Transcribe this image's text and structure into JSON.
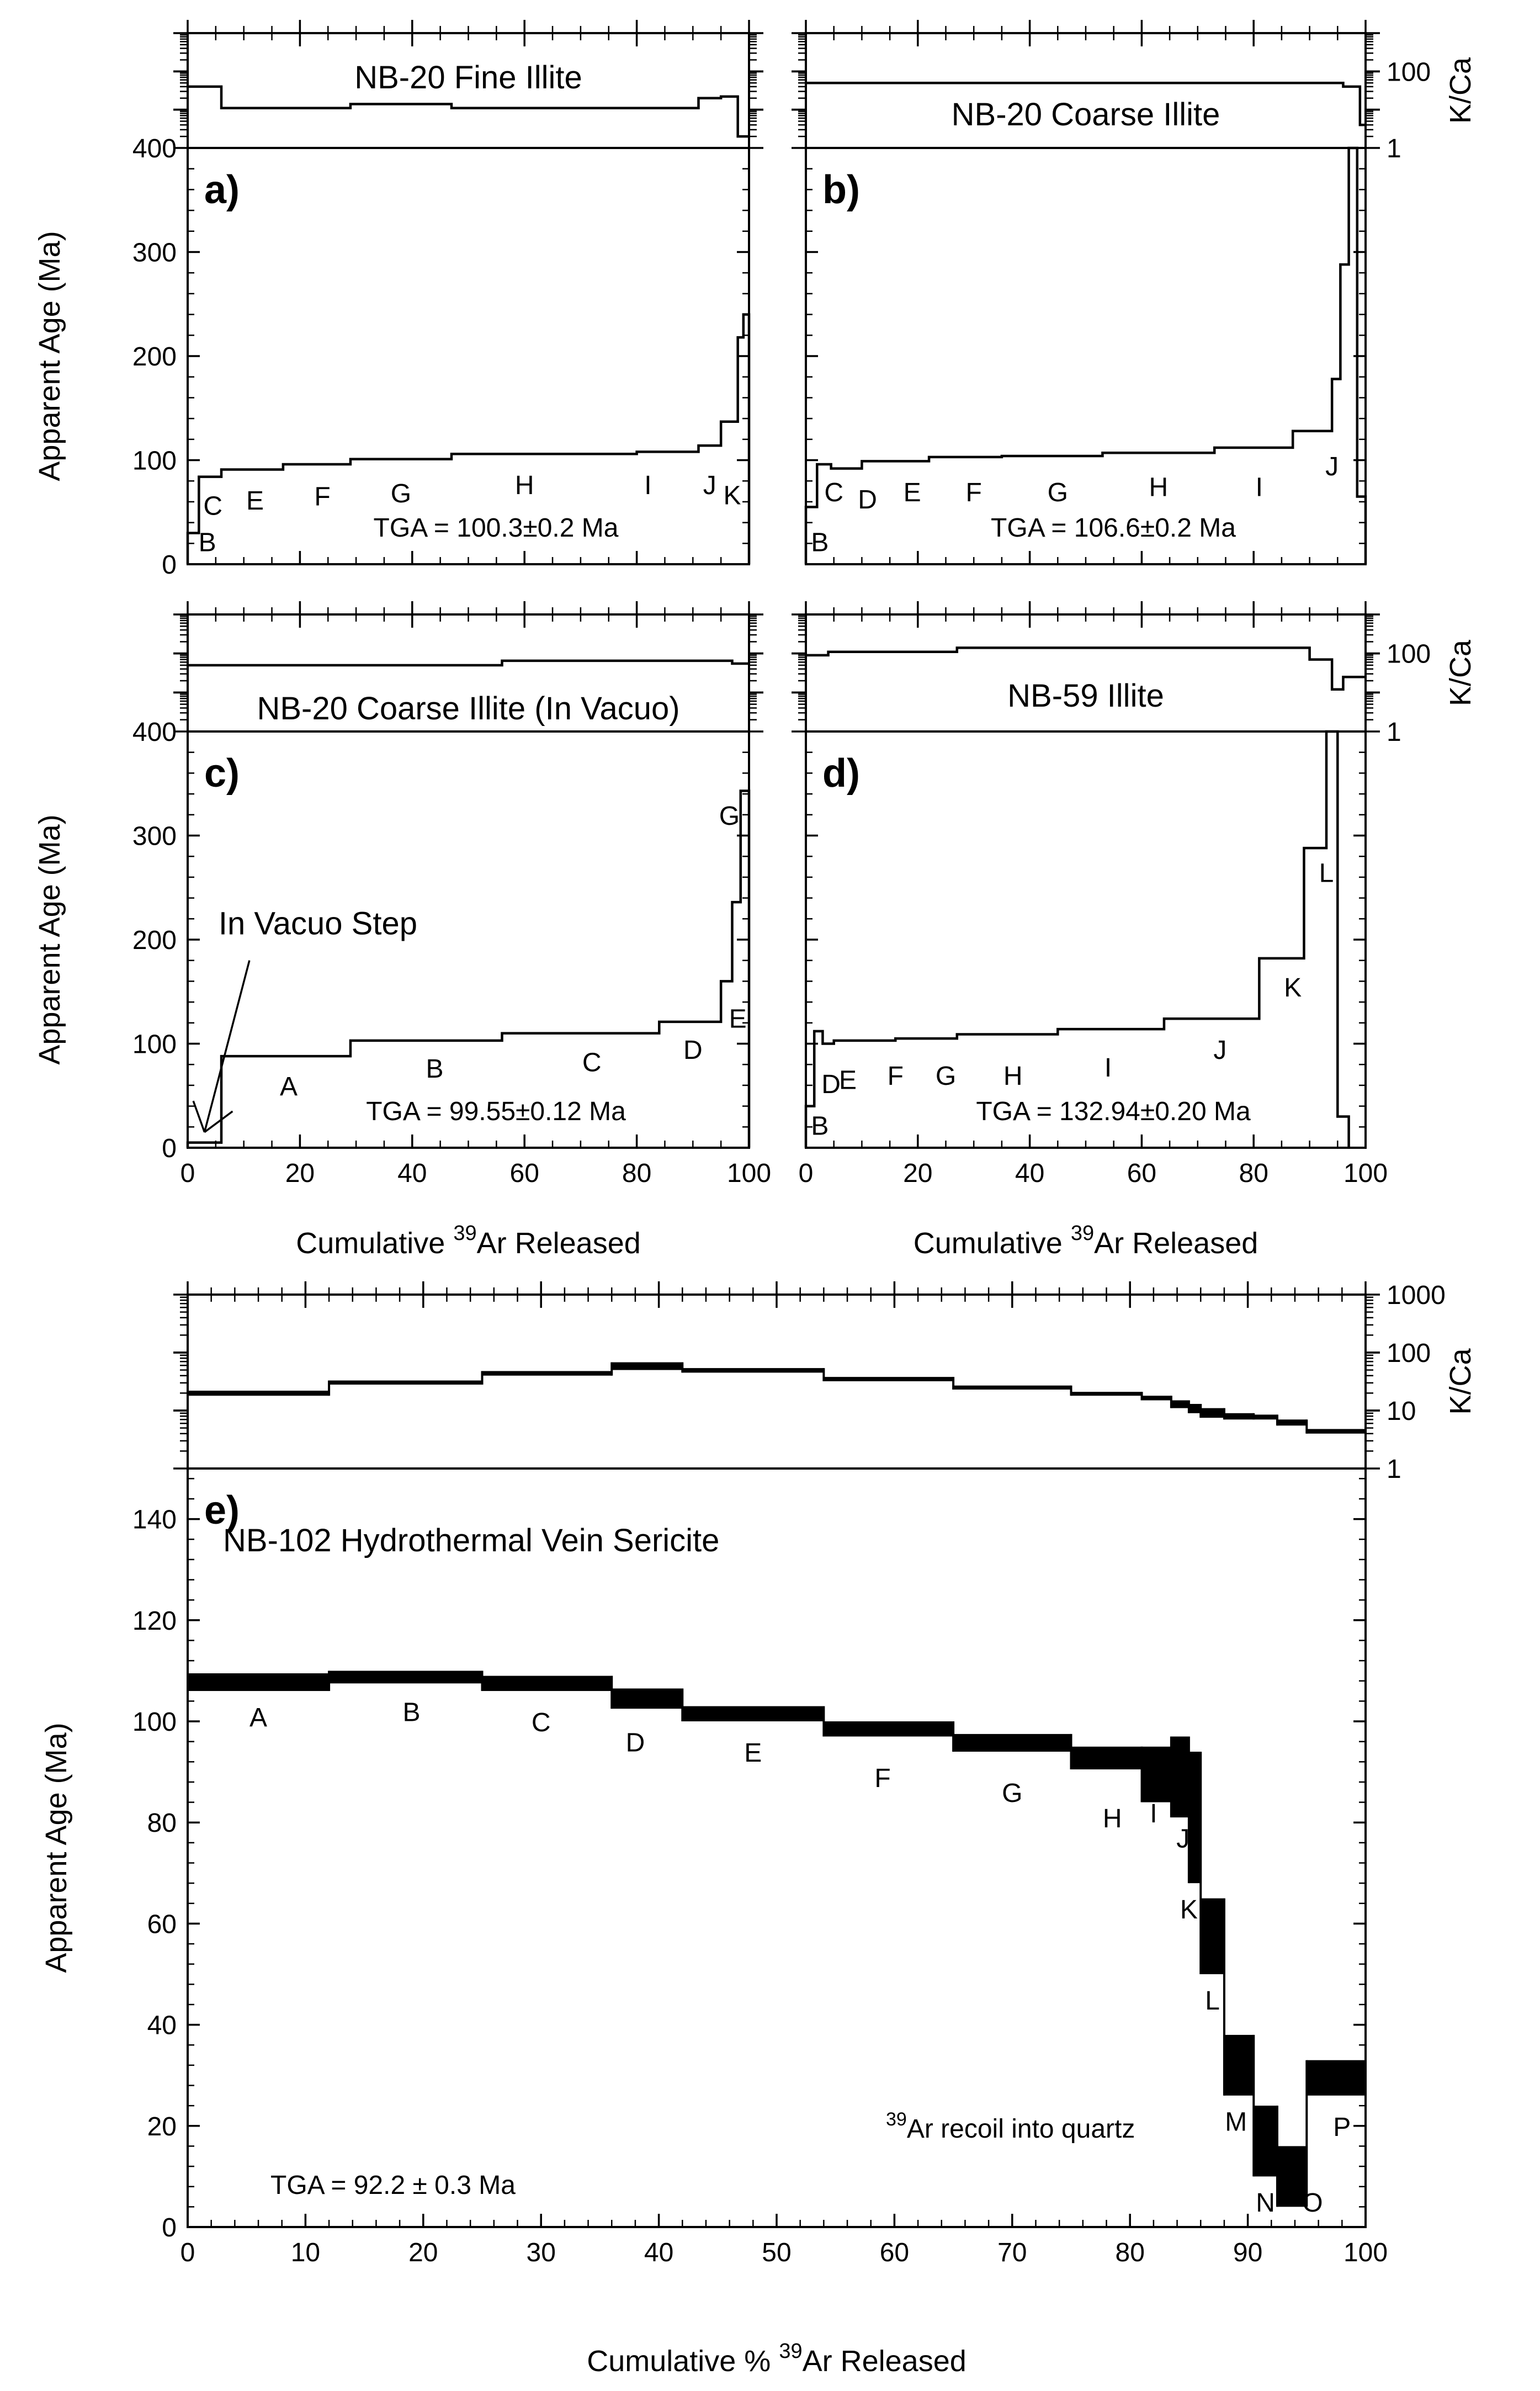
{
  "figure": {
    "xlabel_top": "Cumulative",
    "xlabel_top_sup": "39",
    "xlabel_top_rest": "Ar Released",
    "xlabel_bottom": "Cumulative %",
    "xlabel_bottom_sup": "39",
    "xlabel_bottom_rest": "Ar Released",
    "ylabel": "Apparent Age (Ma)",
    "kca_label": "K/Ca"
  },
  "chart_data": [
    {
      "id": "a",
      "panel_label": "a)",
      "title": "NB-20 Fine Illite",
      "type": "step",
      "xlabel": "",
      "ylabel": "Apparent Age (Ma)",
      "xlim": [
        0,
        100
      ],
      "ylim": [
        0,
        400
      ],
      "yticks": [
        0,
        100,
        200,
        300,
        400
      ],
      "xticks": [],
      "kca_ylim": [
        1,
        1000
      ],
      "kca_ticks": [],
      "tga": "TGA = 100.3±0.2 Ma",
      "steps": [
        {
          "label": "B",
          "x0": 0,
          "x1": 2,
          "age": 30,
          "lx": 3.5,
          "ly": 22
        },
        {
          "label": "C",
          "x0": 2,
          "x1": 6,
          "age": 84,
          "lx": 4.5,
          "ly": 57
        },
        {
          "label": "E",
          "x0": 6,
          "x1": 17,
          "age": 91,
          "lx": 12,
          "ly": 62
        },
        {
          "label": "F",
          "x0": 17,
          "x1": 29,
          "age": 96,
          "lx": 24,
          "ly": 66
        },
        {
          "label": "G",
          "x0": 29,
          "x1": 47,
          "age": 101,
          "lx": 38,
          "ly": 69
        },
        {
          "label": "H",
          "x0": 47,
          "x1": 80,
          "age": 106,
          "lx": 60,
          "ly": 77
        },
        {
          "label": "I",
          "x0": 80,
          "x1": 91,
          "age": 108,
          "lx": 82,
          "ly": 77
        },
        {
          "label": "J",
          "x0": 91,
          "x1": 95,
          "age": 114,
          "lx": 93,
          "ly": 77
        },
        {
          "label": "K",
          "x0": 95,
          "x1": 98,
          "age": 137,
          "lx": 97,
          "ly": 67
        },
        {
          "label": "",
          "x0": 98,
          "x1": 99,
          "age": 218,
          "lx": 0,
          "ly": 0
        },
        {
          "label": "",
          "x0": 99,
          "x1": 100,
          "age": 240,
          "lx": 0,
          "ly": 0
        }
      ],
      "kca": [
        {
          "x0": 0,
          "x1": 6,
          "v": 40
        },
        {
          "x0": 6,
          "x1": 29,
          "v": 11
        },
        {
          "x0": 29,
          "x1": 47,
          "v": 14
        },
        {
          "x0": 47,
          "x1": 91,
          "v": 11
        },
        {
          "x0": 91,
          "x1": 95,
          "v": 20
        },
        {
          "x0": 95,
          "x1": 98,
          "v": 22
        },
        {
          "x0": 98,
          "x1": 100,
          "v": 2
        }
      ]
    },
    {
      "id": "b",
      "panel_label": "b)",
      "title": "NB-20 Coarse Illite",
      "type": "step",
      "xlabel": "",
      "ylabel": "",
      "xlim": [
        0,
        100
      ],
      "ylim": [
        0,
        400
      ],
      "yticks": [
        0,
        100,
        200,
        300,
        400
      ],
      "xticks": [],
      "kca_ylim": [
        1,
        1000
      ],
      "kca_ticks": [
        1,
        100
      ],
      "tga": "TGA = 106.6±0.2 Ma",
      "steps": [
        {
          "label": "B",
          "x0": 0,
          "x1": 2,
          "age": 55,
          "lx": 2.5,
          "ly": 22
        },
        {
          "label": "C",
          "x0": 2,
          "x1": 4.5,
          "age": 96,
          "lx": 5,
          "ly": 70
        },
        {
          "label": "D",
          "x0": 4.5,
          "x1": 10,
          "age": 92,
          "lx": 11,
          "ly": 63
        },
        {
          "label": "E",
          "x0": 10,
          "x1": 22,
          "age": 99,
          "lx": 19,
          "ly": 70
        },
        {
          "label": "F",
          "x0": 22,
          "x1": 35,
          "age": 103,
          "lx": 30,
          "ly": 70
        },
        {
          "label": "G",
          "x0": 35,
          "x1": 53,
          "age": 104,
          "lx": 45,
          "ly": 70
        },
        {
          "label": "H",
          "x0": 53,
          "x1": 73,
          "age": 107,
          "lx": 63,
          "ly": 75
        },
        {
          "label": "I",
          "x0": 73,
          "x1": 87,
          "age": 112,
          "lx": 81,
          "ly": 75
        },
        {
          "label": "J",
          "x0": 87,
          "x1": 94,
          "age": 128,
          "lx": 94,
          "ly": 95
        },
        {
          "label": "",
          "x0": 94,
          "x1": 95.5,
          "age": 178,
          "lx": 0,
          "ly": 0
        },
        {
          "label": "",
          "x0": 95.5,
          "x1": 97,
          "age": 288,
          "lx": 0,
          "ly": 0
        },
        {
          "label": "",
          "x0": 97,
          "x1": 98.5,
          "age": 400,
          "lx": 0,
          "ly": 0
        },
        {
          "label": "",
          "x0": 98.5,
          "x1": 100,
          "age": 65,
          "lx": 0,
          "ly": 0
        }
      ],
      "kca": [
        {
          "x0": 0,
          "x1": 96,
          "v": 50
        },
        {
          "x0": 96,
          "x1": 99,
          "v": 40
        },
        {
          "x0": 99,
          "x1": 100,
          "v": 4
        }
      ]
    },
    {
      "id": "c",
      "panel_label": "c)",
      "title": "NB-20 Coarse Illite (In Vacuo)",
      "type": "step",
      "xlabel": "Cumulative 39Ar Released",
      "ylabel": "Apparent Age (Ma)",
      "xlim": [
        0,
        100
      ],
      "ylim": [
        0,
        400
      ],
      "yticks": [
        0,
        100,
        200,
        300,
        400
      ],
      "xticks": [
        0,
        20,
        40,
        60,
        80,
        100
      ],
      "kca_ylim": [
        1,
        1000
      ],
      "kca_ticks": [],
      "tga": "TGA = 99.55±0.12 Ma",
      "annotation": "In Vacuo Step",
      "steps": [
        {
          "label": "",
          "x0": 0,
          "x1": 6,
          "age": 5,
          "lx": 0,
          "ly": 0
        },
        {
          "label": "A",
          "x0": 6,
          "x1": 29,
          "age": 88,
          "lx": 18,
          "ly": 60
        },
        {
          "label": "B",
          "x0": 29,
          "x1": 56,
          "age": 103,
          "lx": 44,
          "ly": 77
        },
        {
          "label": "C",
          "x0": 56,
          "x1": 84,
          "age": 110,
          "lx": 72,
          "ly": 83
        },
        {
          "label": "D",
          "x0": 84,
          "x1": 95,
          "age": 121,
          "lx": 90,
          "ly": 95
        },
        {
          "label": "E",
          "x0": 95,
          "x1": 97,
          "age": 160,
          "lx": 98,
          "ly": 125
        },
        {
          "label": "",
          "x0": 97,
          "x1": 98.5,
          "age": 236,
          "lx": 0,
          "ly": 0
        },
        {
          "label": "G",
          "x0": 98.5,
          "x1": 100,
          "age": 343,
          "lx": 96.5,
          "ly": 320
        }
      ],
      "kca": [
        {
          "x0": 0,
          "x1": 56,
          "v": 50
        },
        {
          "x0": 56,
          "x1": 97,
          "v": 65
        },
        {
          "x0": 97,
          "x1": 100,
          "v": 55
        }
      ]
    },
    {
      "id": "d",
      "panel_label": "d)",
      "title": "NB-59 Illite",
      "type": "step",
      "xlabel": "Cumulative 39Ar Released",
      "ylabel": "",
      "xlim": [
        0,
        100
      ],
      "ylim": [
        0,
        400
      ],
      "yticks": [
        0,
        100,
        200,
        300,
        400
      ],
      "xticks": [
        0,
        20,
        40,
        60,
        80,
        100
      ],
      "kca_ylim": [
        1,
        1000
      ],
      "kca_ticks": [
        1,
        100
      ],
      "tga": "TGA = 132.94±0.20 Ma",
      "steps": [
        {
          "label": "B",
          "x0": 0,
          "x1": 1.5,
          "age": 40,
          "lx": 2.5,
          "ly": 22
        },
        {
          "label": "D",
          "x0": 1.5,
          "x1": 3,
          "age": 112,
          "lx": 4.5,
          "ly": 62
        },
        {
          "label": "E",
          "x0": 3,
          "x1": 5,
          "age": 100,
          "lx": 7.5,
          "ly": 66
        },
        {
          "label": "F",
          "x0": 5,
          "x1": 16,
          "age": 103,
          "lx": 16,
          "ly": 70
        },
        {
          "label": "G",
          "x0": 16,
          "x1": 27,
          "age": 105,
          "lx": 25,
          "ly": 70
        },
        {
          "label": "H",
          "x0": 27,
          "x1": 45,
          "age": 109,
          "lx": 37,
          "ly": 70
        },
        {
          "label": "I",
          "x0": 45,
          "x1": 64,
          "age": 114,
          "lx": 54,
          "ly": 78
        },
        {
          "label": "J",
          "x0": 64,
          "x1": 81,
          "age": 124,
          "lx": 74,
          "ly": 95
        },
        {
          "label": "K",
          "x0": 81,
          "x1": 89,
          "age": 182,
          "lx": 87,
          "ly": 155
        },
        {
          "label": "L",
          "x0": 89,
          "x1": 93,
          "age": 288,
          "lx": 93,
          "ly": 265
        },
        {
          "label": "",
          "x0": 93,
          "x1": 95,
          "age": 400,
          "lx": 0,
          "ly": 0
        },
        {
          "label": "",
          "x0": 95,
          "x1": 97,
          "age": 30,
          "lx": 0,
          "ly": 0
        }
      ],
      "kca": [
        {
          "x0": 0,
          "x1": 4,
          "v": 90
        },
        {
          "x0": 4,
          "x1": 27,
          "v": 110
        },
        {
          "x0": 27,
          "x1": 90,
          "v": 140
        },
        {
          "x0": 90,
          "x1": 94,
          "v": 70
        },
        {
          "x0": 94,
          "x1": 96,
          "v": 12
        },
        {
          "x0": 96,
          "x1": 100,
          "v": 25
        }
      ]
    },
    {
      "id": "e",
      "panel_label": "e)",
      "title": "NB-102 Hydrothermal Vein Sericite",
      "type": "step-band",
      "xlabel": "Cumulative % 39Ar Released",
      "ylabel": "Apparent Age (Ma)",
      "xlim": [
        0,
        100
      ],
      "ylim": [
        0,
        150
      ],
      "yticks": [
        0,
        20,
        40,
        60,
        80,
        100,
        120,
        140
      ],
      "xticks": [
        0,
        10,
        20,
        30,
        40,
        50,
        60,
        70,
        80,
        90,
        100
      ],
      "kca_ylim": [
        1,
        1000
      ],
      "kca_ticks": [
        1,
        10,
        100,
        1000
      ],
      "tga": "TGA = 92.2 ± 0.3 Ma",
      "annotation_sup": "39",
      "annotation": "Ar recoil into quartz",
      "steps": [
        {
          "label": "A",
          "x0": 0,
          "x1": 12,
          "lo": 106,
          "hi": 109.5,
          "lx": 6,
          "ly": 101
        },
        {
          "label": "B",
          "x0": 12,
          "x1": 25,
          "lo": 107.5,
          "hi": 110,
          "lx": 19,
          "ly": 102
        },
        {
          "label": "C",
          "x0": 25,
          "x1": 36,
          "lo": 106,
          "hi": 109,
          "lx": 30,
          "ly": 100
        },
        {
          "label": "D",
          "x0": 36,
          "x1": 42,
          "lo": 102.5,
          "hi": 106.5,
          "lx": 38,
          "ly": 96
        },
        {
          "label": "E",
          "x0": 42,
          "x1": 54,
          "lo": 100,
          "hi": 103,
          "lx": 48,
          "ly": 94
        },
        {
          "label": "F",
          "x0": 54,
          "x1": 65,
          "lo": 97,
          "hi": 100,
          "lx": 59,
          "ly": 89
        },
        {
          "label": "G",
          "x0": 65,
          "x1": 75,
          "lo": 94,
          "hi": 97.5,
          "lx": 70,
          "ly": 86
        },
        {
          "label": "H",
          "x0": 75,
          "x1": 81,
          "lo": 90.5,
          "hi": 95,
          "lx": 78.5,
          "ly": 81
        },
        {
          "label": "I",
          "x0": 81,
          "x1": 83.5,
          "lo": 84,
          "hi": 95,
          "lx": 82,
          "ly": 82
        },
        {
          "label": "J",
          "x0": 83.5,
          "x1": 85,
          "lo": 81,
          "hi": 97,
          "lx": 84.5,
          "ly": 77
        },
        {
          "label": "K",
          "x0": 85,
          "x1": 86,
          "lo": 68,
          "hi": 94,
          "lx": 85,
          "ly": 63
        },
        {
          "label": "L",
          "x0": 86,
          "x1": 88,
          "lo": 50,
          "hi": 65,
          "lx": 87,
          "ly": 45
        },
        {
          "label": "M",
          "x0": 88,
          "x1": 90.5,
          "lo": 26,
          "hi": 38,
          "lx": 89,
          "ly": 21
        },
        {
          "label": "N",
          "x0": 90.5,
          "x1": 92.5,
          "lo": 10,
          "hi": 24,
          "lx": 91.5,
          "ly": 5
        },
        {
          "label": "O",
          "x0": 92.5,
          "x1": 95,
          "lo": 4,
          "hi": 16,
          "lx": 95.5,
          "ly": 5
        },
        {
          "label": "P",
          "x0": 95,
          "x1": 100,
          "lo": 26,
          "hi": 33,
          "lx": 98,
          "ly": 20
        }
      ],
      "kca": [
        {
          "x0": 0,
          "x1": 12,
          "lo": 18,
          "hi": 22
        },
        {
          "x0": 12,
          "x1": 25,
          "lo": 28,
          "hi": 33
        },
        {
          "x0": 25,
          "x1": 36,
          "lo": 40,
          "hi": 48
        },
        {
          "x0": 36,
          "x1": 42,
          "lo": 50,
          "hi": 68
        },
        {
          "x0": 42,
          "x1": 54,
          "lo": 45,
          "hi": 54
        },
        {
          "x0": 54,
          "x1": 65,
          "lo": 32,
          "hi": 38
        },
        {
          "x0": 65,
          "x1": 75,
          "lo": 23,
          "hi": 27
        },
        {
          "x0": 75,
          "x1": 81,
          "lo": 18,
          "hi": 21
        },
        {
          "x0": 81,
          "x1": 83.5,
          "lo": 15,
          "hi": 18
        },
        {
          "x0": 83.5,
          "x1": 85,
          "lo": 11,
          "hi": 15
        },
        {
          "x0": 85,
          "x1": 86,
          "lo": 9,
          "hi": 13
        },
        {
          "x0": 86,
          "x1": 88,
          "lo": 7.5,
          "hi": 11
        },
        {
          "x0": 88,
          "x1": 90.5,
          "lo": 7,
          "hi": 9
        },
        {
          "x0": 90.5,
          "x1": 92.5,
          "lo": 7,
          "hi": 8.5
        },
        {
          "x0": 92.5,
          "x1": 95,
          "lo": 5.5,
          "hi": 7
        },
        {
          "x0": 95,
          "x1": 100,
          "lo": 4,
          "hi": 4.8
        }
      ]
    }
  ]
}
